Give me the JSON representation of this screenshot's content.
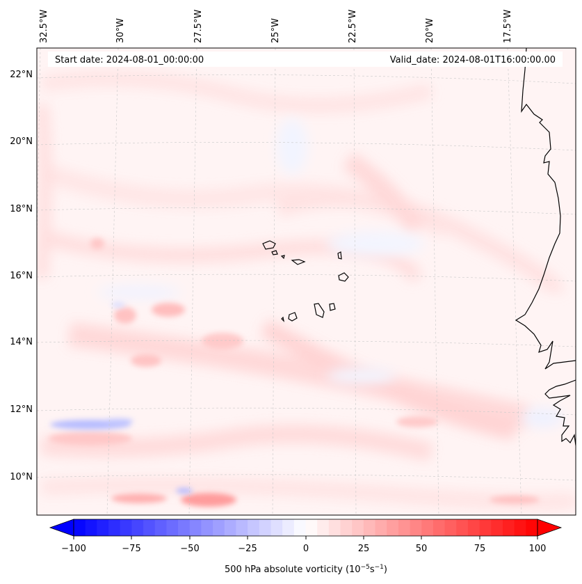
{
  "header": {
    "start_date": "Start date: 2024-08-01_00:00:00",
    "valid_date": "Valid_date: 2024-08-01T16:00:00.00"
  },
  "map": {
    "lon_labels": [
      "32.5°W",
      "30°W",
      "27.5°W",
      "25°W",
      "22.5°W",
      "20°W",
      "17.5°W"
    ],
    "lat_labels": [
      "22°N",
      "20°N",
      "18°N",
      "16°N",
      "14°N",
      "12°N",
      "10°N"
    ]
  },
  "colorbar": {
    "ticks": [
      "−100",
      "−75",
      "−50",
      "−25",
      "0",
      "25",
      "50",
      "75",
      "100"
    ],
    "label": "500 hPa absolute vorticity (10",
    "label_exp1": "−5",
    "label_mid": "s",
    "label_exp2": "−1",
    "label_end": ")",
    "min": -100,
    "max": 100,
    "levels": 40,
    "low_color": "#0000ff",
    "mid_color": "#ffffff",
    "high_color": "#ff0000"
  }
}
